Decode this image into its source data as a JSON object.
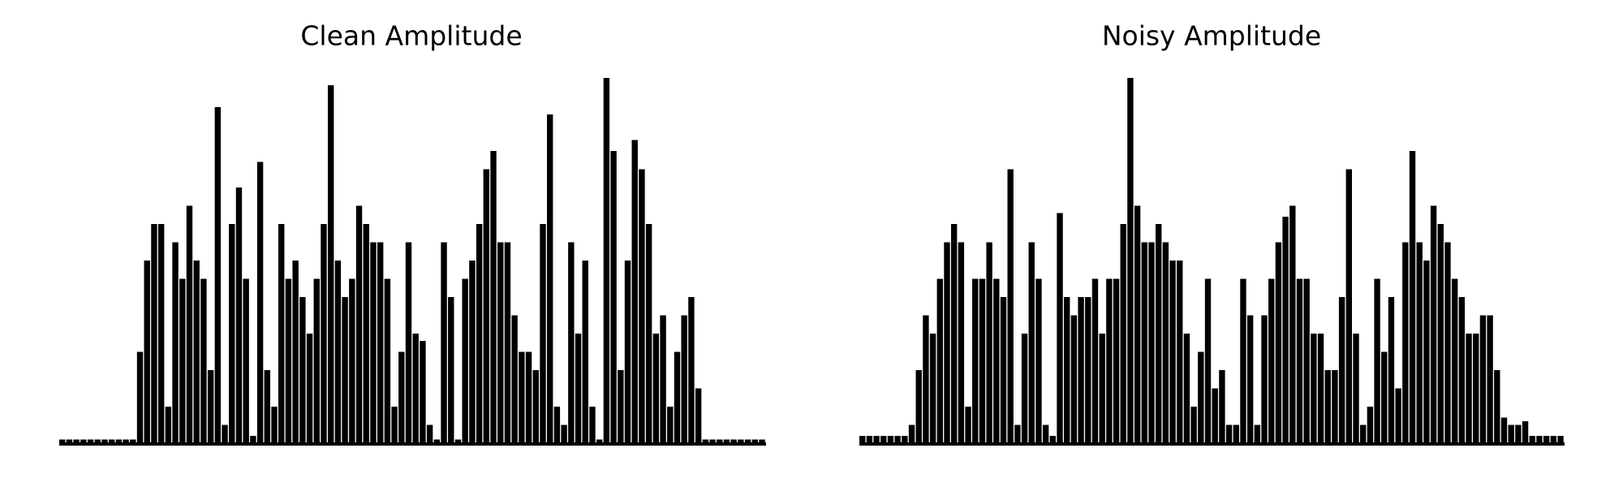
{
  "chart_data": [
    {
      "type": "bar",
      "title": "Clean Amplitude",
      "color": "#000000",
      "ylim": [
        0,
        1
      ],
      "values": [
        0.01,
        0.01,
        0.01,
        0.01,
        0.01,
        0.01,
        0.01,
        0.01,
        0.01,
        0.01,
        0.01,
        0.25,
        0.5,
        0.6,
        0.6,
        0.1,
        0.55,
        0.45,
        0.65,
        0.5,
        0.45,
        0.2,
        0.92,
        0.05,
        0.6,
        0.7,
        0.45,
        0.02,
        0.77,
        0.2,
        0.1,
        0.6,
        0.45,
        0.5,
        0.4,
        0.3,
        0.45,
        0.6,
        0.98,
        0.5,
        0.4,
        0.45,
        0.65,
        0.6,
        0.55,
        0.55,
        0.45,
        0.1,
        0.25,
        0.55,
        0.3,
        0.28,
        0.05,
        0.01,
        0.55,
        0.4,
        0.01,
        0.45,
        0.5,
        0.6,
        0.75,
        0.8,
        0.55,
        0.55,
        0.35,
        0.25,
        0.25,
        0.2,
        0.6,
        0.9,
        0.1,
        0.05,
        0.55,
        0.3,
        0.5,
        0.1,
        0.01,
        1.0,
        0.8,
        0.2,
        0.5,
        0.83,
        0.75,
        0.6,
        0.3,
        0.35,
        0.1,
        0.25,
        0.35,
        0.4,
        0.15,
        0.01,
        0.01,
        0.01,
        0.01,
        0.01,
        0.01,
        0.01,
        0.01,
        0.01
      ]
    },
    {
      "type": "bar",
      "title": "Noisy Amplitude",
      "color": "#000000",
      "ylim": [
        0,
        1
      ],
      "values": [
        0.02,
        0.02,
        0.02,
        0.02,
        0.02,
        0.02,
        0.02,
        0.05,
        0.2,
        0.35,
        0.3,
        0.45,
        0.55,
        0.6,
        0.55,
        0.1,
        0.45,
        0.45,
        0.55,
        0.45,
        0.4,
        0.75,
        0.05,
        0.3,
        0.55,
        0.45,
        0.05,
        0.02,
        0.63,
        0.4,
        0.35,
        0.4,
        0.4,
        0.45,
        0.3,
        0.45,
        0.45,
        0.6,
        1.0,
        0.65,
        0.55,
        0.55,
        0.6,
        0.55,
        0.5,
        0.5,
        0.3,
        0.1,
        0.25,
        0.45,
        0.15,
        0.2,
        0.05,
        0.05,
        0.45,
        0.35,
        0.05,
        0.35,
        0.45,
        0.55,
        0.62,
        0.65,
        0.45,
        0.45,
        0.3,
        0.3,
        0.2,
        0.2,
        0.4,
        0.75,
        0.3,
        0.05,
        0.1,
        0.45,
        0.25,
        0.4,
        0.15,
        0.55,
        0.8,
        0.55,
        0.5,
        0.65,
        0.6,
        0.55,
        0.45,
        0.4,
        0.3,
        0.3,
        0.35,
        0.35,
        0.2,
        0.07,
        0.05,
        0.05,
        0.06,
        0.02,
        0.02,
        0.02,
        0.02,
        0.02
      ]
    }
  ]
}
